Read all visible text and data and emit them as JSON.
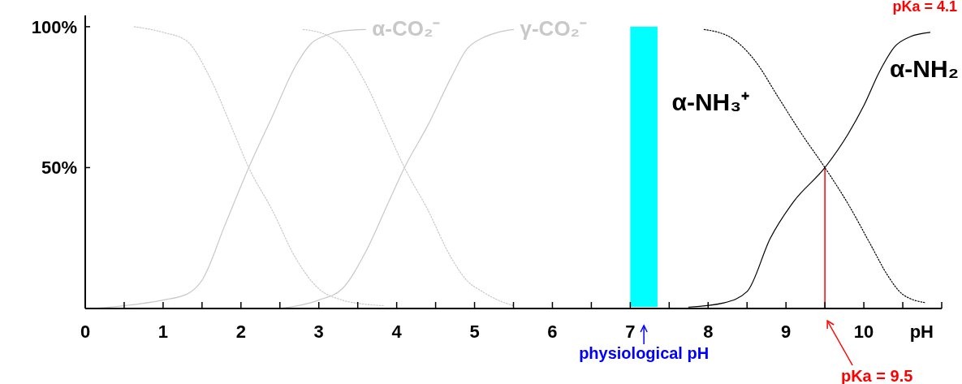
{
  "chart_data": {
    "type": "line",
    "xlabel": "pH",
    "xlim": [
      0,
      11
    ],
    "ylim": [
      0,
      104
    ],
    "marker": "none",
    "xticks": [
      0,
      {
        "value": 0.5,
        "label": null
      },
      1,
      {
        "value": 1.5,
        "label": null
      },
      2,
      {
        "value": 2.5,
        "label": null
      },
      3,
      {
        "value": 3.5,
        "label": null
      },
      4,
      {
        "value": 4.5,
        "label": null
      },
      5,
      {
        "value": 5.5,
        "label": null
      },
      6,
      {
        "value": 6.5,
        "label": null
      },
      7,
      {
        "value": 7.5,
        "label": null
      },
      8,
      {
        "value": 8.5,
        "label": null
      },
      9,
      {
        "value": 9.5,
        "label": null
      },
      10,
      {
        "value": 10.5,
        "label": null
      },
      {
        "value": 11,
        "label": null
      }
    ],
    "yticks": [
      {
        "value": 50,
        "label": "50%"
      },
      {
        "value": 100,
        "label": "100%"
      }
    ],
    "series": [
      {
        "color": "#c8c8c8",
        "line_style": "dotted",
        "x": [
          0.63,
          1.0,
          1.3,
          1.6,
          1.9,
          2.1,
          2.4,
          2.7,
          3.0,
          3.3,
          3.6,
          3.83
        ],
        "values": [
          100,
          98,
          95,
          82,
          63,
          50,
          35,
          18,
          7,
          3,
          1.5,
          1
        ]
      },
      {
        "name": "α-CO₂⁻",
        "color": "#c8c8c8",
        "line_style": "solid",
        "x": [
          0.1,
          0.5,
          1.0,
          1.3,
          1.5,
          1.8,
          2.1,
          2.4,
          2.7,
          2.9,
          3.1,
          3.3,
          3.6
        ],
        "values": [
          0,
          1,
          3,
          5,
          10,
          30,
          50,
          68,
          86,
          94,
          97,
          98.5,
          99
        ]
      },
      {
        "color": "#c8c8c8",
        "line_style": "dotted",
        "x": [
          2.8,
          3.1,
          3.3,
          3.6,
          3.9,
          4.1,
          4.4,
          4.7,
          4.9,
          5.1,
          5.3,
          5.5
        ],
        "values": [
          99,
          97,
          93,
          80,
          62,
          50,
          35,
          18,
          10,
          6,
          3,
          1
        ]
      },
      {
        "name": "γ-CO₂⁻",
        "color": "#c8c8c8",
        "line_style": "solid",
        "x": [
          2.5,
          3.0,
          3.3,
          3.6,
          3.9,
          4.1,
          4.4,
          4.7,
          4.9,
          5.1,
          5.3,
          5.5
        ],
        "values": [
          0,
          3,
          7,
          20,
          38,
          50,
          65,
          82,
          92,
          96,
          98,
          99
        ]
      },
      {
        "name": "α-NH₃⁺",
        "color": "#000000",
        "line_style": "dotted",
        "x": [
          7.95,
          8.3,
          8.6,
          8.9,
          9.2,
          9.5,
          9.8,
          10.1,
          10.3,
          10.5,
          10.8
        ],
        "values": [
          99,
          96,
          88,
          75,
          62,
          50,
          37,
          22,
          12,
          5,
          2
        ]
      },
      {
        "name": "α-NH₂",
        "color": "#000000",
        "line_style": "solid",
        "x": [
          7.75,
          8.2,
          8.5,
          8.8,
          9.1,
          9.5,
          9.8,
          10.0,
          10.2,
          10.4,
          10.6,
          10.85
        ],
        "values": [
          0.5,
          2,
          6,
          25,
          38,
          50,
          62,
          72,
          84,
          93,
          96.5,
          98
        ]
      }
    ],
    "bands": [
      {
        "axis": "x",
        "from": 7.0,
        "to": 7.35,
        "label": "physiological pH",
        "color": "#00ffff"
      }
    ],
    "ref_lines": [
      {
        "axis": "x",
        "value": 9.5,
        "label": "pKa = 9.5",
        "color": "#ff0000"
      }
    ],
    "annotations": [
      "pKa = 4.1"
    ]
  }
}
